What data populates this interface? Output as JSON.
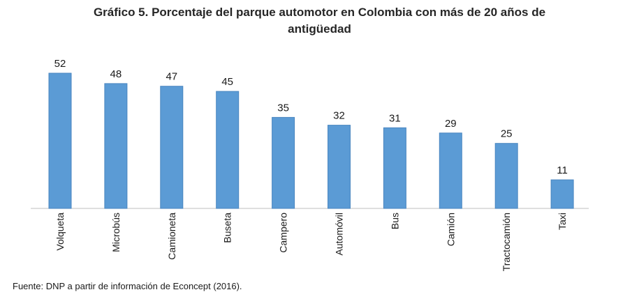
{
  "chart_data": {
    "type": "bar",
    "title_line1": "Gráfico 5. Porcentaje del parque automotor en Colombia con más de 20 años de",
    "title_line2": "antigüedad",
    "categories": [
      "Volqueta",
      "Microbús",
      "Camioneta",
      "Buseta",
      "Campero",
      "Automóvil",
      "Bus",
      "Camión",
      "Tractocamión",
      "Taxi"
    ],
    "values": [
      52,
      48,
      47,
      45,
      35,
      32,
      31,
      29,
      25,
      11
    ],
    "data_labels": [
      "52",
      "48",
      "47",
      "45",
      "35",
      "32",
      "31",
      "29",
      "25",
      "11"
    ],
    "ylim": [
      0,
      52
    ],
    "grid": false,
    "legend": "none",
    "bar_color": "#5b9bd5",
    "bar_edge_color": "#4a86c0",
    "source": "Fuente: DNP a partir de información de Econcept (2016)."
  }
}
